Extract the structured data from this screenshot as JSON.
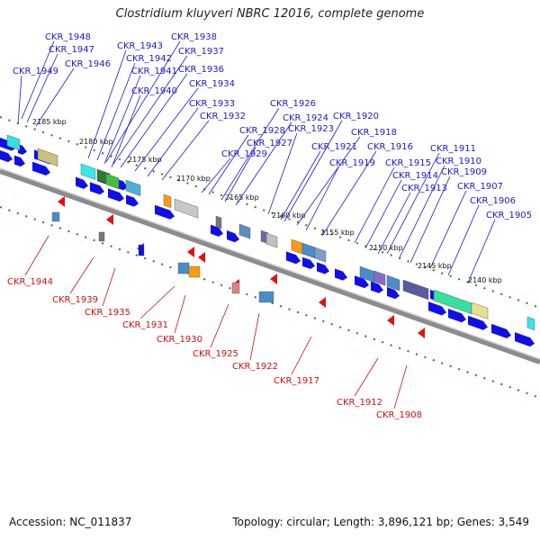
{
  "title": "Clostridium kluyveri NBRC 12016, complete genome",
  "footer": {
    "accession": "Accession: NC_011837",
    "summary": "Topology: circular; Length: 3,896,121 bp; Genes: 3,549"
  },
  "colors": {
    "forward_gene": "#1010e6",
    "reverse_gene": "#e11111",
    "backbone": "#8c8c8c",
    "tick": "#1a8a1a",
    "top_label": "#1a1acc",
    "bottom_label": "#cc1111"
  },
  "kbp_labels": [
    "2185 kbp",
    "2180 kbp",
    "2175 kbp",
    "2170 kbp",
    "2165 kbp",
    "2160 kbp",
    "2155 kbp",
    "2150 kbp",
    "2145 kbp",
    "2140 kbp"
  ],
  "top_genes": [
    "CKR_1948",
    "CKR_1947",
    "CKR_1946",
    "CKR_1949",
    "CKR_1943",
    "CKR_1938",
    "CKR_1942",
    "CKR_1937",
    "CKR_1941",
    "CKR_1936",
    "CKR_1934",
    "CKR_1940",
    "CKR_1933",
    "CKR_1932",
    "CKR_1926",
    "CKR_1924",
    "CKR_1920",
    "CKR_1928",
    "CKR_1923",
    "CKR_1927",
    "CKR_1918",
    "CKR_1929",
    "CKR_1921",
    "CKR_1916",
    "CKR_1919",
    "CKR_1911",
    "CKR_1910",
    "CKR_1915",
    "CKR_1909",
    "CKR_1914",
    "CKR_1913",
    "CKR_1907",
    "CKR_1906",
    "CKR_1905"
  ],
  "bottom_genes": [
    "CKR_1944",
    "CKR_1939",
    "CKR_1935",
    "CKR_1931",
    "CKR_1930",
    "CKR_1925",
    "CKR_1922",
    "CKR_1917",
    "CKR_1912",
    "CKR_1908"
  ]
}
